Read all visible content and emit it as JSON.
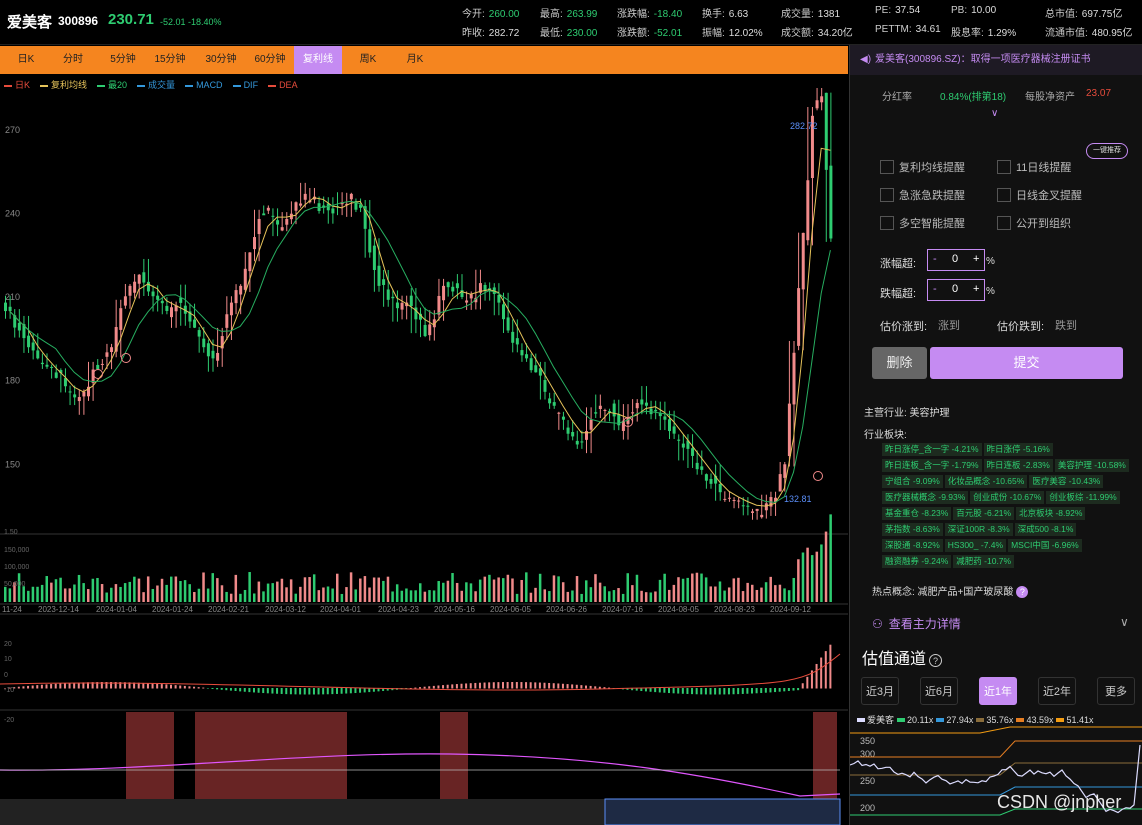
{
  "header": {
    "name": "爱美客",
    "code": "300896",
    "price": "230.71",
    "change": "-52.01 -18.40%",
    "stats": [
      {
        "label": "今开:",
        "value": "260.00",
        "color": "green"
      },
      {
        "label": "最高:",
        "value": "263.99",
        "color": "green"
      },
      {
        "label": "涨跌幅:",
        "value": "-18.40",
        "color": "green"
      },
      {
        "label": "换手:",
        "value": "6.63",
        "color": "white"
      },
      {
        "label": "成交量:",
        "value": "1381",
        "color": "white"
      },
      {
        "label": "PE:",
        "value": "37.54",
        "color": "white"
      },
      {
        "label": "PB:",
        "value": "10.00",
        "color": "white"
      },
      {
        "label": "总市值:",
        "value": "697.75亿",
        "color": "white"
      },
      {
        "label": "昨收:",
        "value": "282.72",
        "color": "white"
      },
      {
        "label": "最低:",
        "value": "230.00",
        "color": "green"
      },
      {
        "label": "涨跌额:",
        "value": "-52.01",
        "color": "green"
      },
      {
        "label": "振幅:",
        "value": "12.02%",
        "color": "white"
      },
      {
        "label": "成交额:",
        "value": "34.20亿",
        "color": "white"
      },
      {
        "label": "PETTM:",
        "value": "34.61",
        "color": "white"
      },
      {
        "label": "股息率:",
        "value": "1.29%",
        "color": "white"
      },
      {
        "label": "流通市值:",
        "value": "480.95亿",
        "color": "white"
      }
    ]
  },
  "tabs": [
    "日K",
    "分时",
    "5分钟",
    "15分钟",
    "30分钟",
    "60分钟",
    "复利线",
    "周K",
    "月K"
  ],
  "active_tab": "复利线",
  "legend": [
    {
      "label": "日K",
      "color": "#e74c3c"
    },
    {
      "label": "复利均线",
      "color": "#e6c35a"
    },
    {
      "label": "最20",
      "color": "#2ecc71"
    },
    {
      "label": "成交量",
      "color": "#3498db"
    },
    {
      "label": "MACD",
      "color": "#3498db"
    },
    {
      "label": "DIF",
      "color": "#3498db"
    },
    {
      "label": "DEA",
      "color": "#e74c3c"
    }
  ],
  "chart_data": {
    "type": "candlestick",
    "y_ticks": [
      "270",
      "240",
      "210",
      "180",
      "150"
    ],
    "ylim": [
      125,
      290
    ],
    "high_label": "282.72",
    "low_label": "132.81",
    "volume_ticks": [
      "1.50",
      "150,000",
      "100,000",
      "50,000"
    ],
    "x_ticks": [
      "11-24",
      "2023-12-14",
      "2024-01-04",
      "2024-01-24",
      "2024-02-21",
      "2024-03-12",
      "2024-04-01",
      "2024-04-23",
      "2024-05-16",
      "2024-06-05",
      "2024-06-26",
      "2024-07-16",
      "2024-08-05",
      "2024-08-23",
      "2024-09-12"
    ],
    "macd_ticks": [
      "20",
      "10",
      "0",
      "-10",
      "-20"
    ],
    "close_path": [
      205,
      198,
      192,
      188,
      185,
      181,
      178,
      174,
      176,
      184,
      186,
      192,
      206,
      214,
      218,
      212,
      209,
      205,
      207,
      204,
      199,
      192,
      188,
      196,
      208,
      214,
      226,
      238,
      242,
      236,
      238,
      244,
      247,
      246,
      242,
      240,
      244,
      247,
      242,
      226,
      214,
      209,
      206,
      208,
      202,
      196,
      202,
      214,
      212,
      210,
      211,
      215,
      212,
      208,
      198,
      193,
      188,
      183,
      176,
      171,
      166,
      160,
      158,
      166,
      171,
      169,
      164,
      167,
      172,
      171,
      169,
      166,
      161,
      156,
      153,
      148,
      143,
      140,
      138,
      137,
      135,
      134,
      136,
      138,
      150,
      190,
      233,
      275,
      282,
      231
    ]
  },
  "right": {
    "news": "爱美客(300896.SZ)：取得一项医疗器械注册证书",
    "dividend_label": "分红率",
    "dividend_value": "0.84%(排第18)",
    "nav_label": "每股净资产",
    "nav_value": "23.07",
    "one_click": "一键推荐",
    "checkboxes": [
      "复利均线提醒",
      "11日线提醒",
      "急涨急跌提醒",
      "日线金叉提醒",
      "多空智能提醒",
      "公开到组织"
    ],
    "rise_label": "涨幅超:",
    "fall_label": "跌幅超:",
    "stepper_value": "0",
    "percent": "%",
    "est_rise_label": "估价涨到:",
    "est_rise_placeholder": "涨到",
    "est_fall_label": "估价跌到:",
    "est_fall_placeholder": "跌到",
    "delete": "删除",
    "submit": "提交",
    "industry": "主营行业: 美容护理",
    "sector_title": "行业板块:",
    "sectors": [
      "昨日涨停_含一字 -4.21%",
      "昨日涨停 -5.16%",
      "昨日连板_含一字 -1.79%",
      "昨日连板 -2.83%",
      "美容护理 -10.58%",
      "宁组合 -9.09%",
      "化妆品概念 -10.65%",
      "医疗美容 -10.43%",
      "医疗器械概念 -9.93%",
      "创业成份 -10.67%",
      "创业板综 -11.99%",
      "基金重仓 -8.23%",
      "百元股 -6.21%",
      "北京板块 -8.92%",
      "茅指数 -8.63%",
      "深证100R -8.3%",
      "深成500 -8.1%",
      "深股通 -8.92%",
      "HS300_ -7.4%",
      "MSCI中国 -6.96%",
      "融资融券 -9.24%",
      "减肥药 -10.7%"
    ],
    "hot": "热点概念: 减肥产品+国产玻尿酸",
    "main_force": "查看主力详情",
    "valuation_title": "估值通道",
    "periods": [
      "近3月",
      "近6月",
      "近1年",
      "近2年",
      "更多"
    ],
    "active_period": "近1年",
    "val_legend": [
      {
        "label": "爱美客",
        "color": "#dcdcff"
      },
      {
        "label": "20.11x",
        "color": "#2ecc71"
      },
      {
        "label": "27.94x",
        "color": "#3498db"
      },
      {
        "label": "35.76x",
        "color": "#8a6d3b"
      },
      {
        "label": "43.59x",
        "color": "#e67e22"
      },
      {
        "label": "51.41x",
        "color": "#f39c12"
      }
    ],
    "val_ticks": [
      "350",
      "300",
      "250",
      "200"
    ]
  },
  "watermark": "CSDN @jnpher"
}
